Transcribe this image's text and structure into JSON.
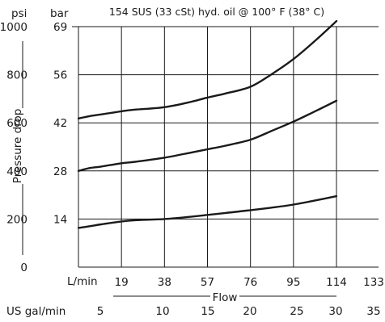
{
  "chart_data": {
    "type": "line",
    "title": "154 SUS (33 cSt) hyd. oil @ 100° F (38° C)",
    "xlabel": "Flow",
    "ylabel": "Pressure drop",
    "units": {
      "y_primary": "psi",
      "y_secondary": "bar",
      "x_primary": "L/min",
      "x_secondary": "US gal/min"
    },
    "xlim": [
      0,
      133
    ],
    "ylim": [
      0,
      1000
    ],
    "x_ticks": [
      {
        "value": 19,
        "label": "19"
      },
      {
        "value": 38,
        "label": "38"
      },
      {
        "value": 57,
        "label": "57"
      },
      {
        "value": 76,
        "label": "76"
      },
      {
        "value": 95,
        "label": "95"
      },
      {
        "value": 114,
        "label": "114"
      },
      {
        "value": 133,
        "label": "133"
      }
    ],
    "x2_ticks": [
      {
        "value": 5,
        "label": "5"
      },
      {
        "value": 10,
        "label": "10"
      },
      {
        "value": 15,
        "label": "15"
      },
      {
        "value": 20,
        "label": "20"
      },
      {
        "value": 25,
        "label": "25"
      },
      {
        "value": 30,
        "label": "30"
      },
      {
        "value": 35,
        "label": "35"
      }
    ],
    "y_ticks": [
      {
        "value": 0,
        "label": "0",
        "bar": ""
      },
      {
        "value": 200,
        "label": "200",
        "bar": "14"
      },
      {
        "value": 400,
        "label": "400",
        "bar": "28"
      },
      {
        "value": 600,
        "label": "600",
        "bar": "42"
      },
      {
        "value": 800,
        "label": "800",
        "bar": "56"
      },
      {
        "value": 1000,
        "label": "1000",
        "bar": "69"
      }
    ],
    "grid": true,
    "series": [
      {
        "x": [
          0,
          5,
          10,
          19,
          25,
          38,
          50,
          57,
          65,
          76,
          85,
          95,
          105,
          114
        ],
        "y": [
          618,
          628,
          635,
          648,
          655,
          665,
          688,
          705,
          722,
          750,
          800,
          865,
          945,
          1023
        ]
      },
      {
        "x": [
          0,
          5,
          10,
          19,
          25,
          38,
          50,
          57,
          65,
          76,
          85,
          95,
          105,
          114
        ],
        "y": [
          400,
          412,
          418,
          432,
          438,
          455,
          477,
          490,
          505,
          530,
          565,
          605,
          650,
          692
        ]
      },
      {
        "x": [
          0,
          5,
          10,
          19,
          25,
          38,
          50,
          57,
          65,
          76,
          85,
          95,
          105,
          114
        ],
        "y": [
          163,
          170,
          178,
          190,
          195,
          200,
          210,
          217,
          225,
          237,
          247,
          260,
          278,
          295
        ]
      }
    ]
  }
}
